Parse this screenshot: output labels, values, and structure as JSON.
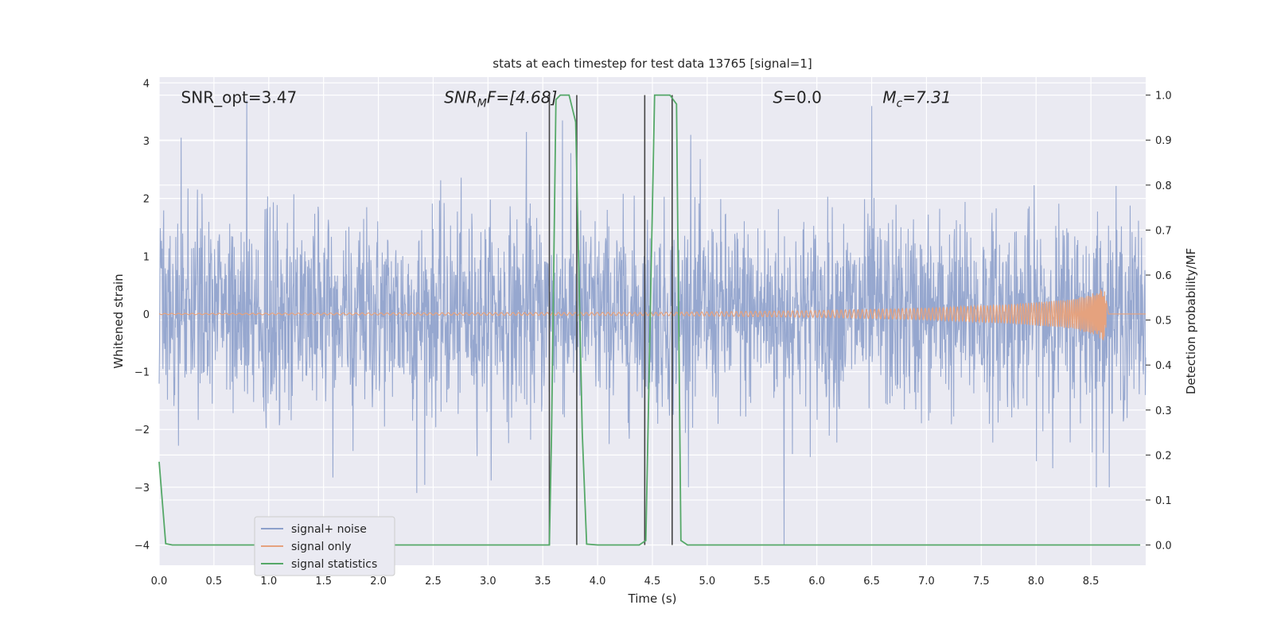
{
  "chart_data": {
    "type": "line",
    "title": "stats at each timestep for test data 13765 [signal=1]",
    "xlabel": "Time (s)",
    "ylabel_left": "Whitened strain",
    "ylabel_right": "Detection probability/MF",
    "xlim": [
      0,
      9.0
    ],
    "ylim_left": [
      -4.35,
      4.1
    ],
    "ylim_right": [
      -0.045,
      1.04
    ],
    "x_ticks": [
      "0.0",
      "0.5",
      "1.0",
      "1.5",
      "2.0",
      "2.5",
      "3.0",
      "3.5",
      "4.0",
      "4.5",
      "5.0",
      "5.5",
      "6.0",
      "6.5",
      "7.0",
      "7.5",
      "8.0",
      "8.5"
    ],
    "y_ticks_left": [
      "−4",
      "−3",
      "−2",
      "−1",
      "0",
      "1",
      "2",
      "3",
      "4"
    ],
    "y_ticks_right": [
      "0.0",
      "0.1",
      "0.2",
      "0.3",
      "0.4",
      "0.5",
      "0.6",
      "0.7",
      "0.8",
      "0.9",
      "1.0"
    ],
    "grid": true,
    "legend_position": "lower-left",
    "annotations": [
      {
        "text": "SNR_opt=3.47",
        "x": 0.2,
        "y": 3.75
      },
      {
        "text": "SNR",
        "sub": "M",
        "suffix": "F=[4.68]",
        "italic": true,
        "x": 2.6,
        "y": 3.75
      },
      {
        "text": "S",
        "sub": "",
        "suffix": "=0.0",
        "italic": true,
        "x": 5.6,
        "y": 3.75
      },
      {
        "text": "M",
        "sub": "c",
        "suffix": "=7.31",
        "italic": true,
        "x": 6.6,
        "y": 3.75
      }
    ],
    "vertical_lines_x": [
      3.56,
      3.81,
      4.43,
      4.68
    ],
    "series": [
      {
        "name": "signal+ noise",
        "color": "#8da0cb",
        "axis": "left",
        "description": "whitened strain noise, spread roughly -1.7 to 1.7 with spikes to about ±3.7",
        "peaks": [
          {
            "x": 0.8,
            "y": 3.7
          },
          {
            "x": 0.2,
            "y": 3.05
          },
          {
            "x": 3.35,
            "y": 3.15
          },
          {
            "x": 3.68,
            "y": 3.35
          },
          {
            "x": 4.85,
            "y": 3.1
          },
          {
            "x": 6.5,
            "y": 3.6
          },
          {
            "x": 5.7,
            "y": -4.0
          },
          {
            "x": 8.55,
            "y": -3.0
          },
          {
            "x": 2.35,
            "y": -3.1
          }
        ]
      },
      {
        "name": "signal only",
        "color": "#e5a27e",
        "axis": "left",
        "description": "chirp waveform growing toward merger near t=8.65",
        "envelope": [
          {
            "x": 0.0,
            "y": 0.01
          },
          {
            "x": 4.7,
            "y": 0.03
          },
          {
            "x": 6.0,
            "y": 0.06
          },
          {
            "x": 7.0,
            "y": 0.1
          },
          {
            "x": 7.8,
            "y": 0.17
          },
          {
            "x": 8.3,
            "y": 0.25
          },
          {
            "x": 8.5,
            "y": 0.34
          },
          {
            "x": 8.62,
            "y": 0.47
          },
          {
            "x": 8.66,
            "y": 0.0
          }
        ]
      },
      {
        "name": "signal statistics",
        "color": "#55a868",
        "axis": "right",
        "x": [
          0.0,
          0.06,
          0.12,
          1.0,
          2.0,
          3.0,
          3.56,
          3.58,
          3.62,
          3.66,
          3.74,
          3.8,
          3.86,
          3.9,
          4.0,
          4.38,
          4.44,
          4.52,
          4.6,
          4.66,
          4.72,
          4.76,
          4.82,
          5.0,
          6.0,
          7.0,
          8.0,
          8.95
        ],
        "y": [
          0.185,
          0.003,
          0.0,
          0.0,
          0.0,
          0.0,
          0.0,
          0.25,
          0.99,
          1.0,
          1.0,
          0.94,
          0.25,
          0.002,
          0.0,
          0.0,
          0.01,
          1.0,
          1.0,
          1.0,
          0.98,
          0.01,
          0.0,
          0.0,
          0.0,
          0.0,
          0.0,
          0.0
        ]
      }
    ]
  }
}
